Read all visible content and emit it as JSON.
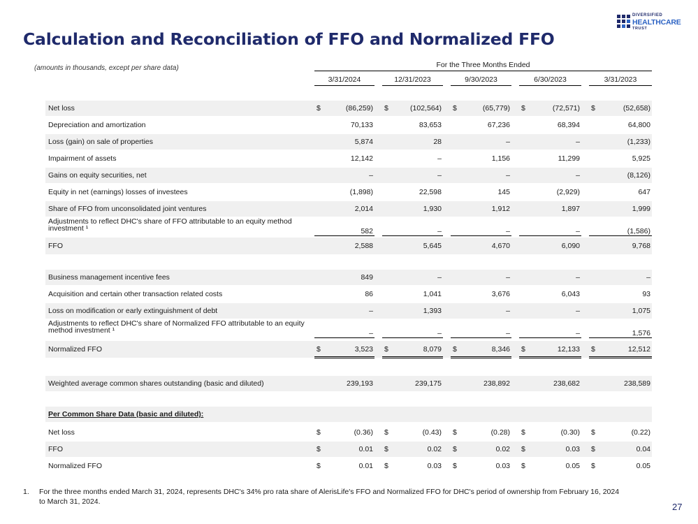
{
  "title": "Calculation and Reconciliation of FFO and Normalized FFO",
  "logo": {
    "line1": "DIVERSIFIED",
    "line2": "HEALTHCARE",
    "line3": "TRUST"
  },
  "note": "(amounts in thousands, except per share data)",
  "period_header": "For the Three Months Ended",
  "columns": [
    "3/31/2024",
    "12/31/2023",
    "9/30/2023",
    "6/30/2023",
    "3/31/2023"
  ],
  "rows": [
    {
      "label": "Net loss",
      "values": [
        "(86,259)",
        "(102,564)",
        "(65,779)",
        "(72,571)",
        "(52,658)"
      ]
    },
    {
      "label": "Depreciation and amortization",
      "values": [
        "70,133",
        "83,653",
        "67,236",
        "68,394",
        "64,800"
      ]
    },
    {
      "label": "Loss (gain) on sale of properties",
      "values": [
        "5,874",
        "28",
        "–",
        "–",
        "(1,233)"
      ]
    },
    {
      "label": "Impairment of assets",
      "values": [
        "12,142",
        "–",
        "1,156",
        "11,299",
        "5,925"
      ]
    },
    {
      "label": "Gains on equity securities, net",
      "values": [
        "–",
        "–",
        "–",
        "–",
        "(8,126)"
      ]
    },
    {
      "label": "Equity in net (earnings) losses of investees",
      "values": [
        "(1,898)",
        "22,598",
        "145",
        "(2,929)",
        "647"
      ]
    },
    {
      "label": "Share of FFO from unconsolidated joint ventures",
      "values": [
        "2,014",
        "1,930",
        "1,912",
        "1,897",
        "1,999"
      ]
    },
    {
      "label": "Adjustments to reflect DHC's share of FFO attributable to an equity method investment ¹",
      "values": [
        "582",
        "–",
        "–",
        "–",
        "(1,586)"
      ]
    },
    {
      "label": "FFO",
      "values": [
        "2,588",
        "5,645",
        "4,670",
        "6,090",
        "9,768"
      ]
    },
    {
      "label": "Business management incentive fees",
      "values": [
        "849",
        "–",
        "–",
        "–",
        "–"
      ]
    },
    {
      "label": "Acquisition and certain other transaction related costs",
      "values": [
        "86",
        "1,041",
        "3,676",
        "6,043",
        "93"
      ]
    },
    {
      "label": "Loss on modification or early extinguishment of debt",
      "values": [
        "–",
        "1,393",
        "–",
        "–",
        "1,075"
      ]
    },
    {
      "label": "Adjustments to reflect DHC's share of Normalized FFO attributable to an equity method investment ¹",
      "values": [
        "–",
        "–",
        "–",
        "–",
        "1,576"
      ]
    },
    {
      "label": "Normalized FFO",
      "values": [
        "3,523",
        "8,079",
        "8,346",
        "12,133",
        "12,512"
      ]
    },
    {
      "label": "Weighted average common shares outstanding (basic and diluted)",
      "values": [
        "239,193",
        "239,175",
        "238,892",
        "238,682",
        "238,589"
      ]
    },
    {
      "label": "Per Common Share Data (basic and diluted):",
      "values": []
    },
    {
      "label": "Net loss",
      "values": [
        "(0.36)",
        "(0.43)",
        "(0.28)",
        "(0.30)",
        "(0.22)"
      ]
    },
    {
      "label": "FFO",
      "values": [
        "0.01",
        "0.02",
        "0.02",
        "0.03",
        "0.04"
      ]
    },
    {
      "label": "Normalized FFO",
      "values": [
        "0.01",
        "0.03",
        "0.03",
        "0.05",
        "0.05"
      ]
    }
  ],
  "currency_symbol": "$",
  "footnote": {
    "number": "1.",
    "text": "For the three months ended March 31, 2024, represents DHC's 34% pro rata share of AlerisLife's FFO and Normalized FFO for DHC's period of ownership from February 16, 2024 to March 31, 2024."
  },
  "page_number": "27",
  "colors": {
    "title": "#1f2a6b",
    "accent": "#2d63c4",
    "shade": "#f0f0f0"
  }
}
